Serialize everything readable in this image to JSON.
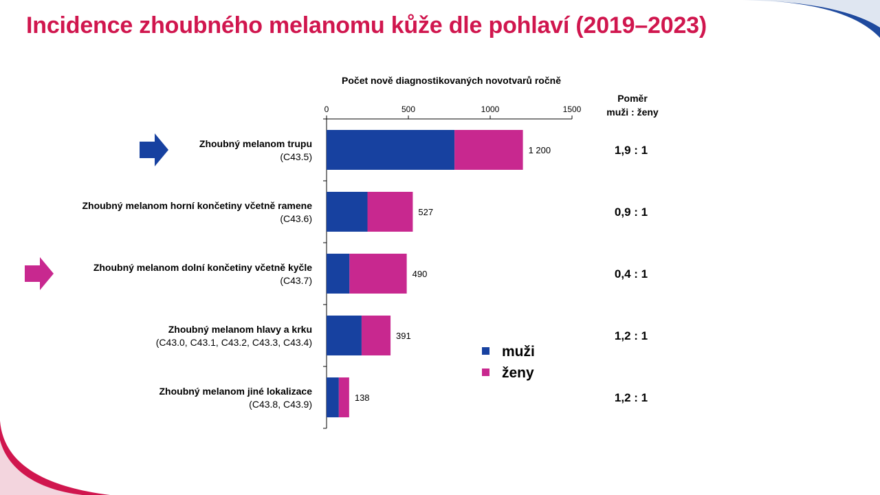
{
  "title": "Incidence zhoubného melanomu kůže dle pohlaví (2019–2023)",
  "colors": {
    "title": "#d0164e",
    "men": "#1741a0",
    "women": "#c8288f",
    "arrow_blue": "#1741a0",
    "arrow_pink": "#c8288f"
  },
  "ratio_header": [
    "Poměr",
    "muži : ženy"
  ],
  "chart_data": {
    "type": "bar",
    "orientation": "horizontal",
    "stacked": true,
    "title": "Počet nově diagnostikovaných novotvarů ročně",
    "xlim": [
      0,
      1500
    ],
    "xticks": [
      0,
      500,
      1000,
      1500
    ],
    "grid": false,
    "legend_position": "right",
    "categories": [
      {
        "name": "Zhoubný melanom trupu",
        "code": "(C43.5)",
        "arrow": "blue"
      },
      {
        "name": "Zhoubný melanom horní končetiny včetně ramene",
        "code": "(C43.6)",
        "arrow": ""
      },
      {
        "name": "Zhoubný melanom dolní končetiny včetně kyčle",
        "code": "(C43.7)",
        "arrow": "pink"
      },
      {
        "name": "Zhoubný melanom hlavy a krku",
        "code": "(C43.0, C43.1, C43.2, C43.3, C43.4)",
        "arrow": ""
      },
      {
        "name": "Zhoubný melanom jiné lokalizace",
        "code": "(C43.8, C43.9)",
        "arrow": ""
      }
    ],
    "series": [
      {
        "name": "muži",
        "color": "#1741a0",
        "values": [
          782,
          250,
          140,
          214,
          75
        ]
      },
      {
        "name": "ženy",
        "color": "#c8288f",
        "values": [
          418,
          277,
          350,
          177,
          63
        ]
      }
    ],
    "totals": [
      1200,
      527,
      490,
      391,
      138
    ],
    "total_labels": [
      "1 200",
      "527",
      "490",
      "391",
      "138"
    ],
    "ratios": [
      "1,9 : 1",
      "0,9 : 1",
      "0,4 : 1",
      "1,2 : 1",
      "1,2 : 1"
    ]
  }
}
